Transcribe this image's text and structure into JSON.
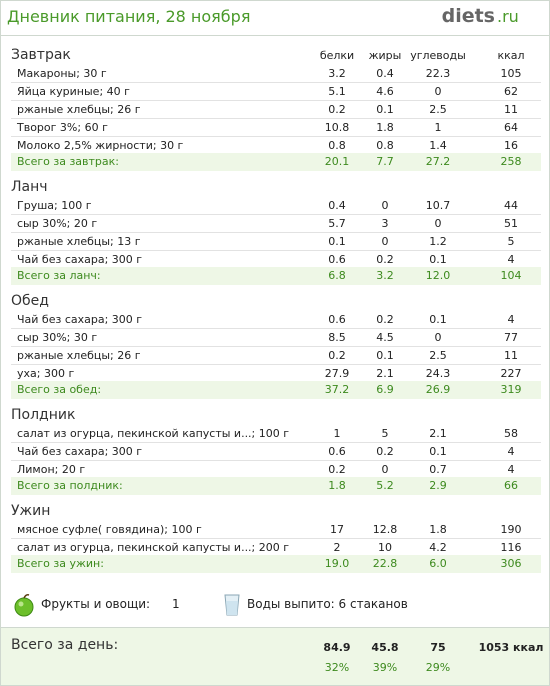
{
  "header": {
    "title": "Дневник питания, 28 ноября",
    "logo": "diets",
    "logo_suffix": ".ru"
  },
  "columns": [
    "белки",
    "жиры",
    "углеводы",
    "ккал"
  ],
  "meals": [
    {
      "title": "Завтрак",
      "rows": [
        [
          "Макароны; 30 г",
          "3.2",
          "0.4",
          "22.3",
          "105"
        ],
        [
          "Яйца куриные; 40 г",
          "5.1",
          "4.6",
          "0",
          "62"
        ],
        [
          "ржаные хлебцы; 26 г",
          "0.2",
          "0.1",
          "2.5",
          "11"
        ],
        [
          "Творог 3%; 60 г",
          "10.8",
          "1.8",
          "1",
          "64"
        ],
        [
          "Молоко 2,5% жирности; 30 г",
          "0.8",
          "0.8",
          "1.4",
          "16"
        ]
      ],
      "total": [
        "Всего за завтрак:",
        "20.1",
        "7.7",
        "27.2",
        "258"
      ]
    },
    {
      "title": "Ланч",
      "rows": [
        [
          "Груша; 100 г",
          "0.4",
          "0",
          "10.7",
          "44"
        ],
        [
          "сыр 30%; 20 г",
          "5.7",
          "3",
          "0",
          "51"
        ],
        [
          "ржаные хлебцы; 13 г",
          "0.1",
          "0",
          "1.2",
          "5"
        ],
        [
          "Чай без сахара; 300 г",
          "0.6",
          "0.2",
          "0.1",
          "4"
        ]
      ],
      "total": [
        "Всего за ланч:",
        "6.8",
        "3.2",
        "12.0",
        "104"
      ]
    },
    {
      "title": "Обед",
      "rows": [
        [
          "Чай без сахара; 300 г",
          "0.6",
          "0.2",
          "0.1",
          "4"
        ],
        [
          "сыр 30%; 30 г",
          "8.5",
          "4.5",
          "0",
          "77"
        ],
        [
          "ржаные хлебцы; 26 г",
          "0.2",
          "0.1",
          "2.5",
          "11"
        ],
        [
          "уха; 300 г",
          "27.9",
          "2.1",
          "24.3",
          "227"
        ]
      ],
      "total": [
        "Всего за обед:",
        "37.2",
        "6.9",
        "26.9",
        "319"
      ]
    },
    {
      "title": "Полдник",
      "rows": [
        [
          "салат из огурца, пекинской капусты и...; 100 г",
          "1",
          "5",
          "2.1",
          "58"
        ],
        [
          "Чай без сахара; 300 г",
          "0.6",
          "0.2",
          "0.1",
          "4"
        ],
        [
          "Лимон; 20 г",
          "0.2",
          "0",
          "0.7",
          "4"
        ]
      ],
      "total": [
        "Всего за полдник:",
        "1.8",
        "5.2",
        "2.9",
        "66"
      ]
    },
    {
      "title": "Ужин",
      "rows": [
        [
          "мясное суфле( говядина); 100 г",
          "17",
          "12.8",
          "1.8",
          "190"
        ],
        [
          "салат из огурца, пекинской капусты и...; 200 г",
          "2",
          "10",
          "4.2",
          "116"
        ]
      ],
      "total": [
        "Всего за ужин:",
        "19.0",
        "22.8",
        "6.0",
        "306"
      ]
    }
  ],
  "extras": {
    "fruits_label": "Фрукты и овощи:",
    "fruits_value": "1",
    "water": "Воды выпито: 6 стаканов"
  },
  "day_total": {
    "label": "Всего за день:",
    "values": [
      "84.9",
      "45.8",
      "75",
      "1053 ккал"
    ],
    "percents": [
      "32%",
      "39%",
      "29%"
    ]
  }
}
